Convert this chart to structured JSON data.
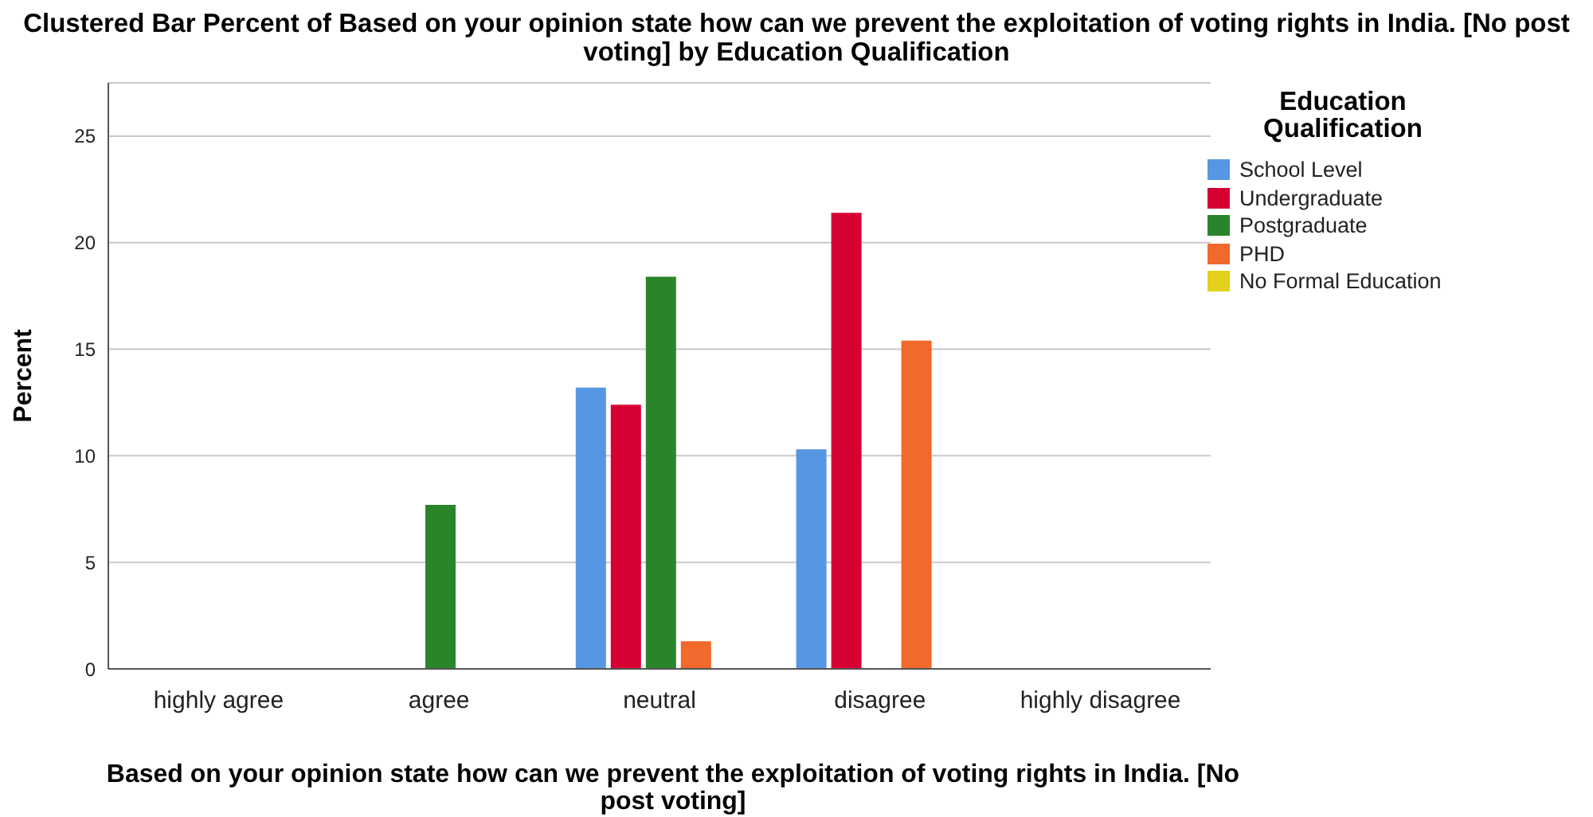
{
  "chart_data": {
    "type": "bar",
    "title": "Clustered Bar Percent of Based on your opinion state how can we prevent the exploitation of voting rights in India. [No post voting] by Education Qualification",
    "xlabel": "Based on your opinion state how can we prevent the exploitation of voting rights in India. [No post voting]",
    "ylabel": "Percent",
    "legend_title": "Education Qualification",
    "categories": [
      "highly agree",
      "agree",
      "neutral",
      "disagree",
      "highly disagree"
    ],
    "series": [
      {
        "name": "School Level",
        "color": "#5597e3",
        "values": [
          null,
          null,
          13.2,
          10.3,
          null
        ]
      },
      {
        "name": "Undergraduate",
        "color": "#d70033",
        "values": [
          null,
          null,
          12.4,
          21.4,
          null
        ]
      },
      {
        "name": "Postgraduate",
        "color": "#2a852a",
        "values": [
          null,
          7.7,
          18.4,
          null,
          null
        ]
      },
      {
        "name": "PHD",
        "color": "#f2692c",
        "values": [
          null,
          null,
          1.3,
          15.4,
          null
        ]
      },
      {
        "name": "No Formal Education",
        "color": "#e3d21c",
        "values": [
          null,
          null,
          null,
          null,
          null
        ]
      }
    ],
    "ylim": [
      0,
      27.5
    ],
    "yticks": [
      0,
      5,
      10,
      15,
      20,
      25
    ],
    "grid": "y",
    "legend": "right"
  }
}
